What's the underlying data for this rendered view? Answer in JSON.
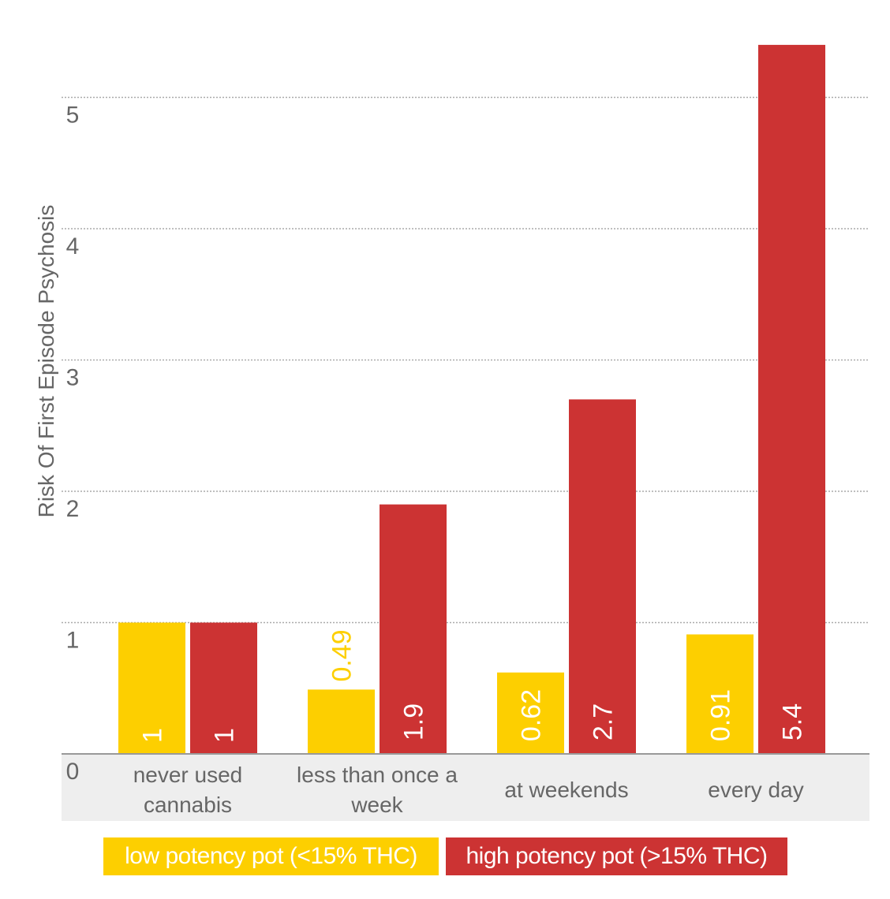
{
  "chart_data": {
    "type": "bar",
    "title": "",
    "xlabel": "",
    "ylabel": "Risk Of First Episode Psychosis",
    "categories": [
      [
        "never used",
        "cannabis"
      ],
      [
        "less than once a",
        "week"
      ],
      [
        "at weekends"
      ],
      [
        "every day"
      ]
    ],
    "series": [
      {
        "name": "low potency pot (<15% THC)",
        "color": "#FDCF00",
        "values": [
          1,
          0.49,
          0.62,
          0.91
        ],
        "labels": [
          "1",
          "0.49",
          "0.62",
          "0.91"
        ]
      },
      {
        "name": "high potency pot (>15% THC)",
        "color": "#CC3333",
        "values": [
          1,
          1.9,
          2.7,
          5.4
        ],
        "labels": [
          "1",
          "1.9",
          "2.7",
          "5.4"
        ]
      }
    ],
    "yticks": [
      0,
      1,
      2,
      3,
      4,
      5
    ],
    "ylim": [
      0,
      5.4
    ],
    "grid": true,
    "legend": "bottom"
  }
}
